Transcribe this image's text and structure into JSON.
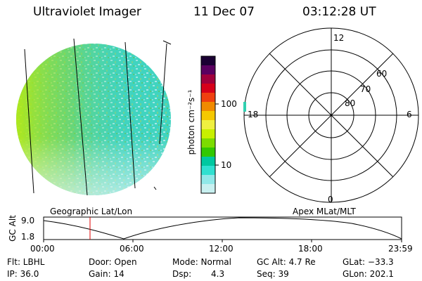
{
  "header": {
    "instrument": "Ultraviolet Imager",
    "date": "11 Dec 07",
    "time": "03:12:28 UT"
  },
  "colorbar": {
    "unit_label": "photon cm⁻²s⁻¹",
    "tick_100": "100",
    "tick_10": "10",
    "colors": [
      "#1a0033",
      "#5a0060",
      "#a0003c",
      "#d7001a",
      "#f04010",
      "#f08a00",
      "#f5c800",
      "#f0f040",
      "#c8f000",
      "#7cdc00",
      "#32c800",
      "#00c8a0",
      "#30e0d0",
      "#90e8e8",
      "#c8f0f0"
    ]
  },
  "polar_plot": {
    "mlt_labels": {
      "top": "12",
      "left": "18",
      "right": "6",
      "bottom": "0"
    },
    "lat_labels": [
      "60",
      "70",
      "80"
    ]
  },
  "timeline": {
    "left_label": "Geographic Lat/Lon",
    "right_label": "Apex MLat/MLT",
    "axis_title": "GC Alt",
    "y_ticks": [
      "9.0",
      "1.8"
    ],
    "x_ticks": [
      "00:00",
      "06:00",
      "12:00",
      "18:00",
      "23:59"
    ],
    "current_marker_color": "#e00000"
  },
  "info": {
    "flt": "Flt: LBHL",
    "ip": "IP: 36.0",
    "door": "Door: Open",
    "gain": "Gain: 14",
    "mode": "Mode: Normal",
    "dsp_label": "Dsp:",
    "dsp_value": "4.3",
    "gcalt": "GC Alt: 4.7 Re",
    "seq": "Seq: 39",
    "glat": "GLat: −33.3",
    "glon": "GLon: 202.1"
  }
}
